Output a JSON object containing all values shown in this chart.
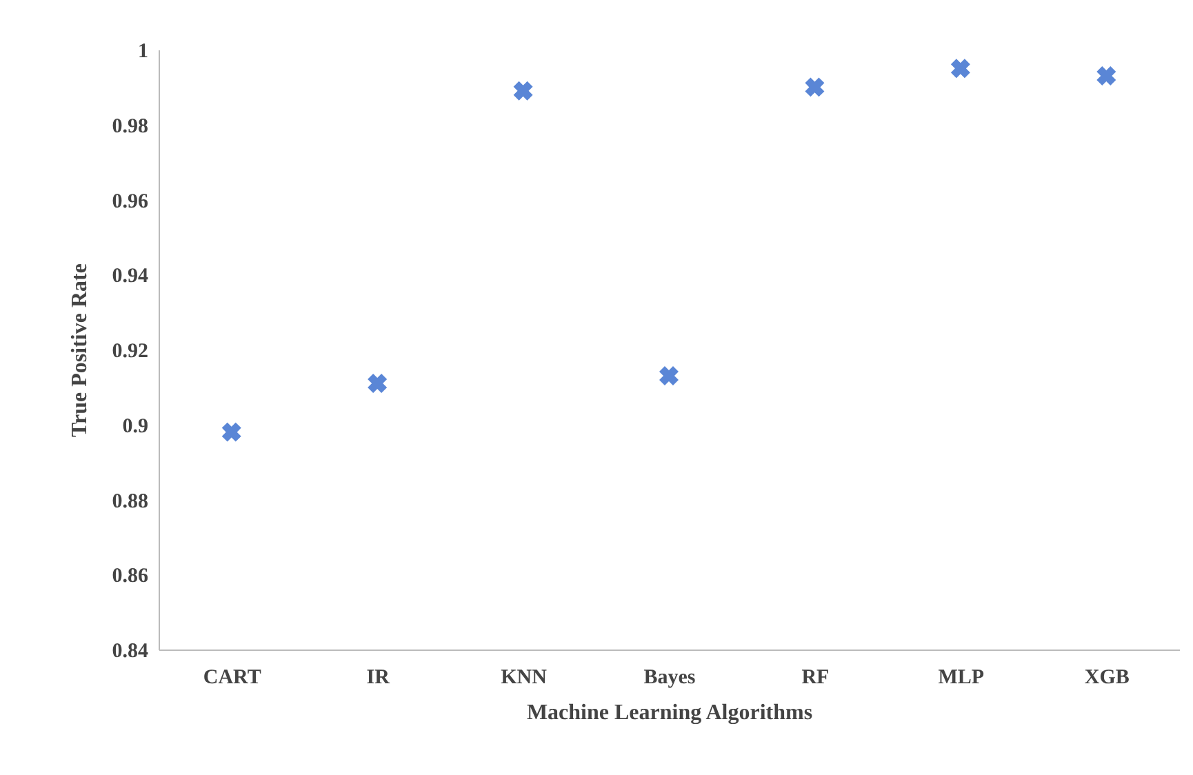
{
  "chart_data": {
    "type": "scatter",
    "xlabel": "Machine Learning Algorithms",
    "ylabel": "True Positive Rate",
    "categories": [
      "CART",
      "IR",
      "KNN",
      "Bayes",
      "RF",
      "MLP",
      "XGB"
    ],
    "series": [
      {
        "color": "#5a86d6",
        "values": [
          0.898,
          0.911,
          0.989,
          0.913,
          0.99,
          0.995,
          0.993
        ]
      }
    ],
    "ylim": [
      0.84,
      1
    ],
    "yticks": [
      0.84,
      0.86,
      0.88,
      0.9,
      0.92,
      0.94,
      0.96,
      0.98,
      1
    ],
    "grid": false,
    "marker": "cross"
  }
}
